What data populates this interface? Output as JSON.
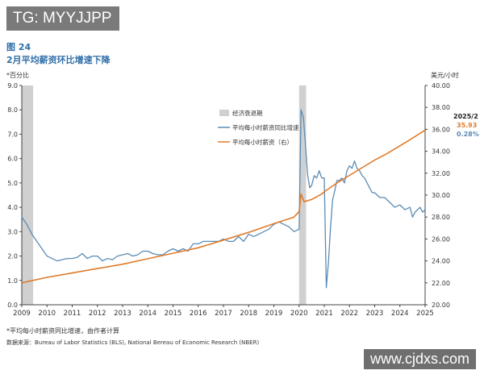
{
  "watermark_top": "TG: MYYJJPP",
  "watermark_bottom": "www.cjdxs.com",
  "figure": {
    "label": "图 24",
    "title": "2月平均薪资环比增速下降"
  },
  "footnotes": {
    "note": "*平均每小时薪资同比增速，由作者计算",
    "source": "数据来源：Bureau of Labor Statistics (BLS), National Bereau of Economic Research (NBER)"
  },
  "colors": {
    "yoy": "#5b8bb5",
    "wage": "#e07b2a",
    "recession": "#d0d0d0",
    "annot_wage": "#e07b2a",
    "annot_yoy": "#5b8bb5"
  },
  "chart_data": {
    "type": "line",
    "title": "2月平均薪资环比增速下降",
    "xlabel": "",
    "ylabel_left": "*百分比",
    "ylabel_right": "美元/小时",
    "xlim": [
      2009.0,
      2025.0
    ],
    "ylim_left": [
      0.0,
      9.0
    ],
    "ylim_right": [
      20.0,
      40.0
    ],
    "yticks_left": [
      "0.0",
      "1.0",
      "2.0",
      "3.0",
      "4.0",
      "5.0",
      "6.0",
      "7.0",
      "8.0",
      "9.0"
    ],
    "yticks_right": [
      "20.00",
      "22.00",
      "24.00",
      "26.00",
      "28.00",
      "30.00",
      "32.00",
      "34.00",
      "36.00",
      "38.00",
      "40.00"
    ],
    "xticks": [
      "2009",
      "2010",
      "2011",
      "2012",
      "2013",
      "2014",
      "2015",
      "2016",
      "2017",
      "2018",
      "2019",
      "2020",
      "2021",
      "2022",
      "2023",
      "2024",
      "2025"
    ],
    "recessions": [
      {
        "start": 2009.0,
        "end": 2009.45
      },
      {
        "start": 2020.0,
        "end": 2020.28
      }
    ],
    "legend": [
      "经济衰退期",
      "平均每小时薪资同比增速",
      "平均每小时薪资（右）"
    ],
    "annotation": {
      "label": "2025/2",
      "wage": "35.93",
      "yoy": "0.28%"
    },
    "series": [
      {
        "name": "平均每小时薪资同比增速",
        "axis": "left",
        "x": [
          2009.0,
          2009.2,
          2009.4,
          2009.6,
          2009.8,
          2010.0,
          2010.2,
          2010.4,
          2010.6,
          2010.8,
          2011.0,
          2011.2,
          2011.4,
          2011.6,
          2011.8,
          2012.0,
          2012.2,
          2012.4,
          2012.6,
          2012.8,
          2013.0,
          2013.2,
          2013.4,
          2013.6,
          2013.8,
          2014.0,
          2014.2,
          2014.4,
          2014.6,
          2014.8,
          2015.0,
          2015.2,
          2015.4,
          2015.6,
          2015.8,
          2016.0,
          2016.2,
          2016.4,
          2016.6,
          2016.8,
          2017.0,
          2017.2,
          2017.4,
          2017.6,
          2017.8,
          2018.0,
          2018.2,
          2018.4,
          2018.6,
          2018.8,
          2019.0,
          2019.2,
          2019.4,
          2019.6,
          2019.8,
          2020.0,
          2020.08,
          2020.17,
          2020.25,
          2020.33,
          2020.42,
          2020.5,
          2020.6,
          2020.7,
          2020.8,
          2020.9,
          2021.0,
          2021.08,
          2021.17,
          2021.25,
          2021.33,
          2021.42,
          2021.5,
          2021.6,
          2021.7,
          2021.8,
          2021.9,
          2022.0,
          2022.1,
          2022.2,
          2022.3,
          2022.4,
          2022.5,
          2022.6,
          2022.7,
          2022.8,
          2022.9,
          2023.0,
          2023.2,
          2023.4,
          2023.6,
          2023.8,
          2024.0,
          2024.2,
          2024.4,
          2024.5,
          2024.6,
          2024.8,
          2024.9,
          2025.0
        ],
        "values": [
          3.6,
          3.3,
          2.9,
          2.6,
          2.3,
          2.0,
          1.9,
          1.8,
          1.85,
          1.9,
          1.9,
          1.95,
          2.1,
          1.9,
          2.0,
          2.0,
          1.8,
          1.9,
          1.85,
          2.0,
          2.05,
          2.1,
          2.0,
          2.05,
          2.2,
          2.2,
          2.1,
          2.05,
          2.05,
          2.2,
          2.3,
          2.2,
          2.3,
          2.2,
          2.5,
          2.5,
          2.6,
          2.6,
          2.6,
          2.6,
          2.7,
          2.6,
          2.6,
          2.8,
          2.6,
          2.9,
          2.8,
          2.9,
          3.0,
          3.1,
          3.3,
          3.4,
          3.3,
          3.2,
          3.0,
          3.1,
          8.0,
          7.7,
          6.6,
          5.4,
          4.8,
          4.9,
          5.3,
          5.2,
          5.5,
          5.2,
          5.2,
          0.7,
          1.8,
          3.2,
          4.3,
          4.7,
          5.1,
          5.1,
          5.2,
          5.0,
          5.5,
          5.7,
          5.6,
          5.9,
          5.6,
          5.5,
          5.3,
          5.2,
          5.0,
          4.8,
          4.6,
          4.6,
          4.4,
          4.4,
          4.2,
          4.0,
          4.1,
          3.9,
          4.0,
          3.6,
          3.8,
          4.0,
          3.8,
          3.9
        ]
      },
      {
        "name": "平均每小时薪资（右）",
        "axis": "right",
        "x": [
          2009.0,
          2010.0,
          2011.0,
          2012.0,
          2013.0,
          2014.0,
          2015.0,
          2016.0,
          2017.0,
          2018.0,
          2019.0,
          2019.8,
          2020.0,
          2020.08,
          2020.2,
          2020.5,
          2020.9,
          2021.0,
          2021.5,
          2022.0,
          2022.5,
          2023.0,
          2023.5,
          2024.0,
          2024.5,
          2025.0
        ],
        "values": [
          22.0,
          22.5,
          22.9,
          23.3,
          23.7,
          24.2,
          24.7,
          25.2,
          25.9,
          26.6,
          27.4,
          28.0,
          28.5,
          30.1,
          29.4,
          29.6,
          30.1,
          30.3,
          31.1,
          31.8,
          32.5,
          33.2,
          33.8,
          34.5,
          35.2,
          35.93
        ]
      }
    ]
  }
}
